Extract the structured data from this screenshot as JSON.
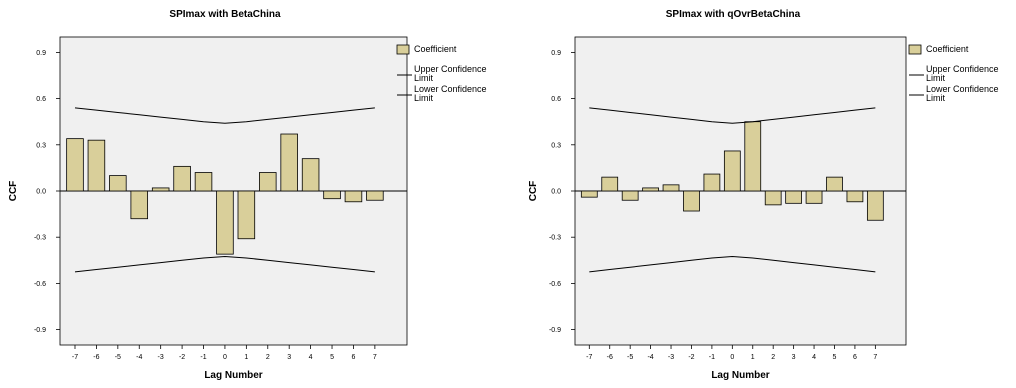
{
  "chart_data": [
    {
      "type": "bar",
      "title": "SPImax with BetaChina",
      "xlabel": "Lag Number",
      "ylabel": "CCF",
      "categories": [
        "-7",
        "-6",
        "-5",
        "-4",
        "-3",
        "-2",
        "-1",
        "0",
        "1",
        "2",
        "3",
        "4",
        "5",
        "6",
        "7"
      ],
      "ylim": [
        -1.0,
        1.0
      ],
      "yticks": [
        "0.9",
        "0.6",
        "0.3",
        "0.0",
        "-0.3",
        "-0.6",
        "-0.9"
      ],
      "ytick_values": [
        0.9,
        0.6,
        0.3,
        0.0,
        -0.3,
        -0.6,
        -0.9
      ],
      "grid": false,
      "legend_position": "right",
      "series": [
        {
          "name": "Coefficient",
          "type": "bar",
          "color": "#d9cf9a",
          "values": [
            0.34,
            0.33,
            0.1,
            -0.18,
            0.02,
            0.16,
            0.12,
            -0.41,
            -0.31,
            0.12,
            0.37,
            0.21,
            -0.05,
            -0.07,
            -0.06
          ]
        },
        {
          "name": "Upper Confidence Limit",
          "type": "line",
          "values": [
            0.54,
            0.525,
            0.51,
            0.495,
            0.48,
            0.465,
            0.45,
            0.44,
            0.45,
            0.465,
            0.48,
            0.495,
            0.51,
            0.525,
            0.54
          ]
        },
        {
          "name": "Lower Confidence Limit",
          "type": "line",
          "values": [
            -0.525,
            -0.51,
            -0.495,
            -0.48,
            -0.465,
            -0.45,
            -0.435,
            -0.425,
            -0.435,
            -0.45,
            -0.465,
            -0.48,
            -0.495,
            -0.51,
            -0.525
          ]
        }
      ]
    },
    {
      "type": "bar",
      "title": "SPImax with qOvrBetaChina",
      "xlabel": "Lag Number",
      "ylabel": "CCF",
      "categories": [
        "-7",
        "-6",
        "-5",
        "-4",
        "-3",
        "-2",
        "-1",
        "0",
        "1",
        "2",
        "3",
        "4",
        "5",
        "6",
        "7"
      ],
      "ylim": [
        -1.0,
        1.0
      ],
      "yticks": [
        "0.9",
        "0.6",
        "0.3",
        "0.0",
        "-0.3",
        "-0.6",
        "-0.9"
      ],
      "ytick_values": [
        0.9,
        0.6,
        0.3,
        0.0,
        -0.3,
        -0.6,
        -0.9
      ],
      "grid": false,
      "legend_position": "right",
      "series": [
        {
          "name": "Coefficient",
          "type": "bar",
          "color": "#d9cf9a",
          "values": [
            -0.04,
            0.09,
            -0.06,
            0.02,
            0.04,
            -0.13,
            0.11,
            0.26,
            0.45,
            -0.09,
            -0.08,
            -0.08,
            0.09,
            -0.07,
            -0.19
          ]
        },
        {
          "name": "Upper Confidence Limit",
          "type": "line",
          "values": [
            0.54,
            0.525,
            0.51,
            0.495,
            0.48,
            0.465,
            0.45,
            0.44,
            0.45,
            0.465,
            0.48,
            0.495,
            0.51,
            0.525,
            0.54
          ]
        },
        {
          "name": "Lower Confidence Limit",
          "type": "line",
          "values": [
            -0.525,
            -0.51,
            -0.495,
            -0.48,
            -0.465,
            -0.45,
            -0.435,
            -0.425,
            -0.435,
            -0.45,
            -0.465,
            -0.48,
            -0.495,
            -0.51,
            -0.525
          ]
        }
      ]
    }
  ],
  "legend": {
    "items": [
      {
        "label_lines": [
          "Coefficient"
        ],
        "kind": "box"
      },
      {
        "label_lines": [
          "Upper Confidence",
          "Limit"
        ],
        "kind": "line"
      },
      {
        "label_lines": [
          "Lower Confidence",
          "Limit"
        ],
        "kind": "line"
      }
    ]
  },
  "colors": {
    "bar_fill": "#d9cf9a",
    "plot_bg": "#f0f0f0",
    "stroke": "#000000"
  }
}
